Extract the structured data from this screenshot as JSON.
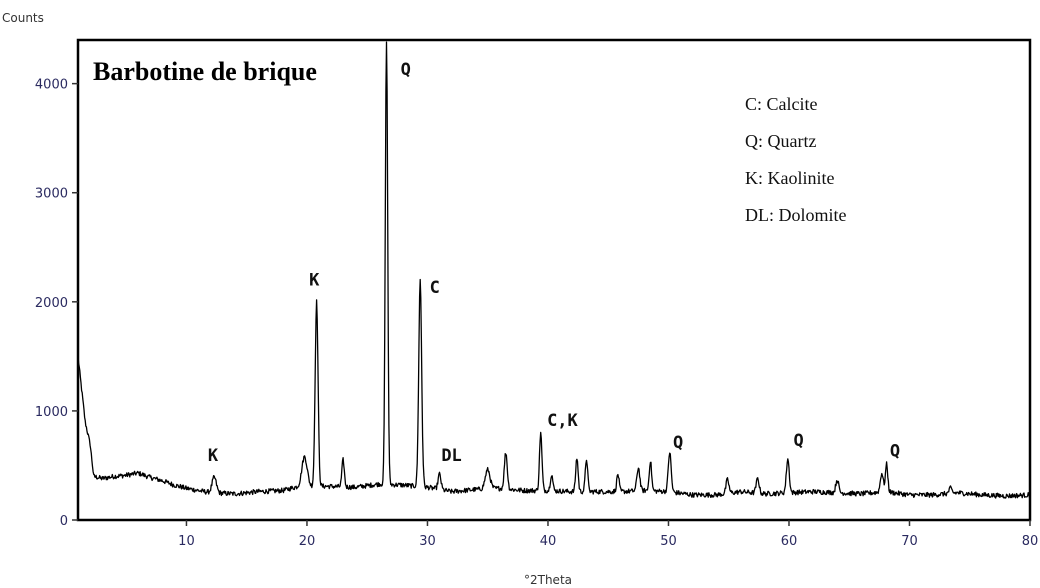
{
  "chart_data": {
    "type": "line",
    "title": "Barbotine de brique",
    "xlabel": "°2Theta",
    "ylabel": "Counts",
    "xlim": [
      1,
      80
    ],
    "ylim": [
      0,
      4400
    ],
    "x_ticks": [
      10,
      20,
      30,
      40,
      50,
      60,
      70,
      80
    ],
    "y_ticks": [
      0,
      1000,
      2000,
      3000,
      4000
    ],
    "grid": false,
    "legend_position": "top-right",
    "legend": [
      {
        "symbol": "C",
        "text": "C: Calcite"
      },
      {
        "symbol": "Q",
        "text": "Q: Quartz"
      },
      {
        "symbol": "K",
        "text": "K: Kaolinite"
      },
      {
        "symbol": "DL",
        "text": "DL: Dolomite"
      }
    ],
    "baseline": [
      {
        "x": 1.0,
        "y": 1500
      },
      {
        "x": 1.3,
        "y": 1200
      },
      {
        "x": 1.6,
        "y": 900
      },
      {
        "x": 2.0,
        "y": 700
      },
      {
        "x": 2.3,
        "y": 400
      },
      {
        "x": 3.0,
        "y": 380
      },
      {
        "x": 4.0,
        "y": 400
      },
      {
        "x": 5.0,
        "y": 410
      },
      {
        "x": 6.0,
        "y": 430
      },
      {
        "x": 7.0,
        "y": 390
      },
      {
        "x": 8.0,
        "y": 360
      },
      {
        "x": 9.0,
        "y": 320
      },
      {
        "x": 10.0,
        "y": 290
      },
      {
        "x": 12.0,
        "y": 250
      },
      {
        "x": 14.0,
        "y": 240
      },
      {
        "x": 16.0,
        "y": 260
      },
      {
        "x": 18.0,
        "y": 270
      },
      {
        "x": 19.0,
        "y": 300
      },
      {
        "x": 21.5,
        "y": 310
      },
      {
        "x": 24.0,
        "y": 300
      },
      {
        "x": 26.0,
        "y": 330
      },
      {
        "x": 28.0,
        "y": 320
      },
      {
        "x": 30.0,
        "y": 300
      },
      {
        "x": 32.0,
        "y": 260
      },
      {
        "x": 34.0,
        "y": 280
      },
      {
        "x": 36.0,
        "y": 290
      },
      {
        "x": 38.0,
        "y": 270
      },
      {
        "x": 40.0,
        "y": 270
      },
      {
        "x": 42.0,
        "y": 260
      },
      {
        "x": 44.0,
        "y": 260
      },
      {
        "x": 46.0,
        "y": 260
      },
      {
        "x": 48.0,
        "y": 270
      },
      {
        "x": 50.0,
        "y": 260
      },
      {
        "x": 52.0,
        "y": 230
      },
      {
        "x": 54.0,
        "y": 230
      },
      {
        "x": 56.0,
        "y": 260
      },
      {
        "x": 58.0,
        "y": 240
      },
      {
        "x": 60.0,
        "y": 250
      },
      {
        "x": 62.0,
        "y": 260
      },
      {
        "x": 64.0,
        "y": 250
      },
      {
        "x": 66.0,
        "y": 240
      },
      {
        "x": 68.0,
        "y": 260
      },
      {
        "x": 70.0,
        "y": 230
      },
      {
        "x": 72.0,
        "y": 230
      },
      {
        "x": 74.0,
        "y": 250
      },
      {
        "x": 76.0,
        "y": 230
      },
      {
        "x": 78.0,
        "y": 220
      },
      {
        "x": 80.0,
        "y": 230
      }
    ],
    "peaks": [
      {
        "x": 12.3,
        "y": 390,
        "w": 0.18
      },
      {
        "x": 19.8,
        "y": 580,
        "w": 0.22
      },
      {
        "x": 20.8,
        "y": 2000,
        "w": 0.12
      },
      {
        "x": 23.0,
        "y": 550,
        "w": 0.1
      },
      {
        "x": 26.6,
        "y": 4400,
        "w": 0.1
      },
      {
        "x": 29.4,
        "y": 2200,
        "w": 0.12
      },
      {
        "x": 31.0,
        "y": 420,
        "w": 0.12
      },
      {
        "x": 35.0,
        "y": 460,
        "w": 0.2
      },
      {
        "x": 36.5,
        "y": 620,
        "w": 0.12
      },
      {
        "x": 39.4,
        "y": 800,
        "w": 0.1
      },
      {
        "x": 40.3,
        "y": 420,
        "w": 0.1
      },
      {
        "x": 42.4,
        "y": 570,
        "w": 0.1
      },
      {
        "x": 43.2,
        "y": 560,
        "w": 0.1
      },
      {
        "x": 45.8,
        "y": 420,
        "w": 0.1
      },
      {
        "x": 47.5,
        "y": 480,
        "w": 0.12
      },
      {
        "x": 48.5,
        "y": 540,
        "w": 0.1
      },
      {
        "x": 50.1,
        "y": 620,
        "w": 0.12
      },
      {
        "x": 54.9,
        "y": 370,
        "w": 0.12
      },
      {
        "x": 57.4,
        "y": 380,
        "w": 0.12
      },
      {
        "x": 59.9,
        "y": 560,
        "w": 0.12
      },
      {
        "x": 64.0,
        "y": 370,
        "w": 0.12
      },
      {
        "x": 67.7,
        "y": 430,
        "w": 0.12
      },
      {
        "x": 68.1,
        "y": 510,
        "w": 0.1
      },
      {
        "x": 73.4,
        "y": 290,
        "w": 0.12
      }
    ],
    "peak_labels": [
      {
        "text": "K",
        "x": 12.2,
        "y": 540
      },
      {
        "text": "K",
        "x": 20.6,
        "y": 2150
      },
      {
        "text": "Q",
        "x": 28.2,
        "y": 4080
      },
      {
        "text": "C",
        "x": 30.6,
        "y": 2080
      },
      {
        "text": "DL",
        "x": 32.0,
        "y": 540
      },
      {
        "text": "C,K",
        "x": 41.2,
        "y": 860
      },
      {
        "text": "Q",
        "x": 50.8,
        "y": 660
      },
      {
        "text": "Q",
        "x": 60.8,
        "y": 680
      },
      {
        "text": "Q",
        "x": 68.8,
        "y": 580
      }
    ]
  }
}
